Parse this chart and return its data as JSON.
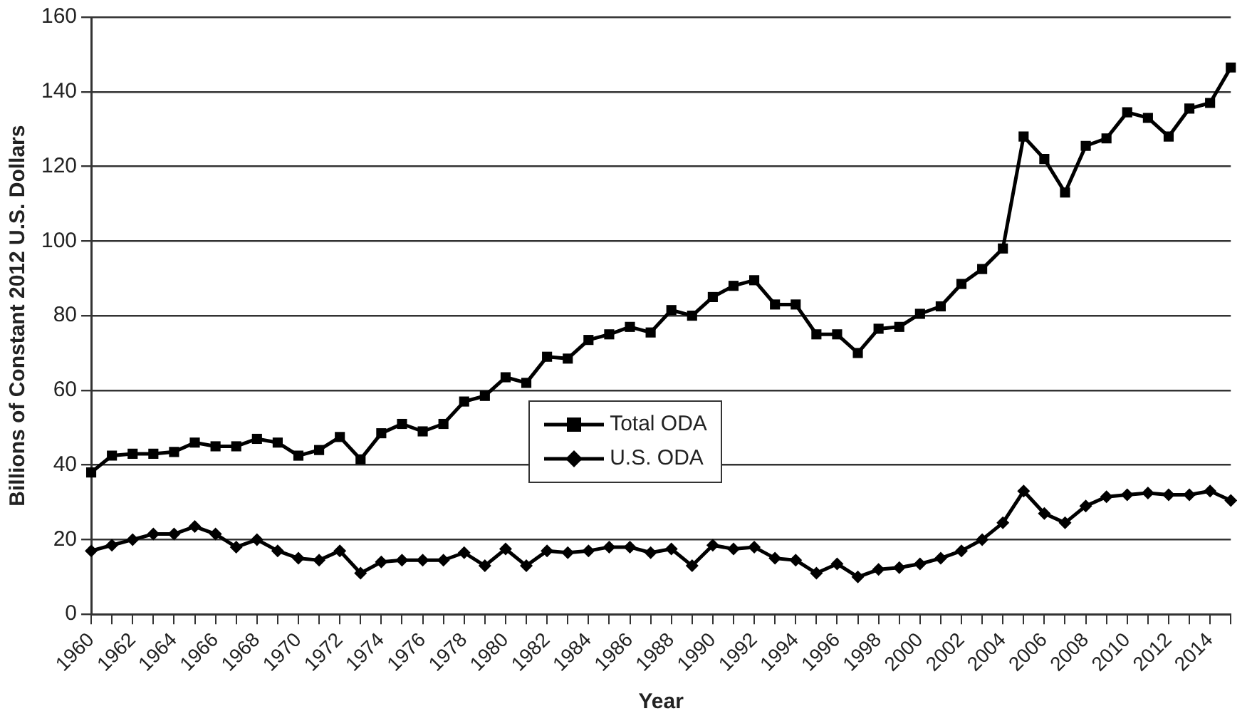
{
  "chart_data": {
    "type": "line",
    "xlabel": "Year",
    "ylabel": "Billions of Constant 2012 U.S. Dollars",
    "categories": [
      "1960",
      null,
      "1962",
      null,
      "1964",
      null,
      "1966",
      null,
      "1968",
      null,
      "1970",
      null,
      "1972",
      null,
      "1974",
      null,
      "1976",
      null,
      "1978",
      null,
      "1980",
      null,
      "1982",
      null,
      "1984",
      null,
      "1986",
      null,
      "1988",
      null,
      "1990",
      null,
      "1992",
      null,
      "1994",
      null,
      "1996",
      null,
      "1998",
      null,
      "2000",
      null,
      "2002",
      null,
      "2004",
      null,
      "2006",
      null,
      "2008",
      null,
      "2010",
      null,
      "2012",
      null,
      "2014",
      null
    ],
    "series": [
      {
        "name": "Total ODA",
        "color": "#000000",
        "marker": "square",
        "values": [
          38,
          42.5,
          43,
          43,
          43.5,
          46,
          45,
          45,
          47,
          46,
          42.5,
          44,
          47.5,
          41.5,
          48.5,
          51,
          49,
          51,
          57,
          58.5,
          63.5,
          62,
          69,
          68.5,
          73.5,
          75,
          77,
          75.5,
          81.5,
          80,
          85,
          88,
          89.5,
          83,
          83,
          75,
          75,
          70,
          76.5,
          77,
          80.5,
          82.5,
          88.5,
          92.5,
          98,
          128,
          122,
          113,
          125.5,
          127.5,
          134.5,
          133,
          128,
          135.5,
          137,
          146.5
        ]
      },
      {
        "name": "U.S. ODA",
        "color": "#000000",
        "marker": "diamond",
        "values": [
          17,
          18.5,
          20,
          21.5,
          21.5,
          23.5,
          21.5,
          18,
          20,
          17,
          15,
          14.5,
          17,
          11,
          14,
          14.5,
          14.5,
          14.5,
          16.5,
          13,
          17.5,
          13,
          17,
          16.5,
          17,
          18,
          18,
          16.5,
          17.5,
          13,
          18.5,
          17.5,
          18,
          15,
          14.5,
          11,
          13.5,
          10,
          12,
          12.5,
          13.5,
          15,
          17,
          20,
          24.5,
          33,
          27,
          24.5,
          29,
          31.5,
          32,
          32.5,
          32,
          32,
          33,
          30.5
        ]
      }
    ],
    "ylim": [
      0,
      160
    ],
    "yticks": [
      0,
      20,
      40,
      60,
      80,
      100,
      120,
      140,
      160
    ],
    "grid": "y",
    "legend": "center",
    "line_style": "solid"
  }
}
